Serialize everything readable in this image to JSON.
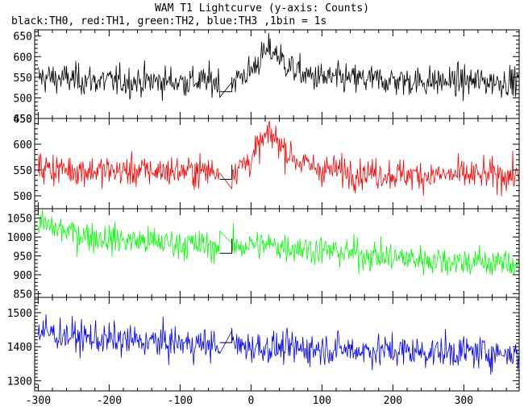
{
  "title": "WAM T1 Lightcurve (y-axis: Counts)",
  "subtitle": "black:TH0, red:TH1, green:TH2, blue:TH3 ,1bin = 1s",
  "chart_data": [
    {
      "type": "line",
      "title": "",
      "xlabel": "",
      "ylabel": "",
      "xlim": [
        -305,
        378
      ],
      "ylim": [
        450,
        665
      ],
      "yticks": [
        450,
        500,
        550,
        600,
        650
      ],
      "color": "#000000",
      "gap": [
        -44,
        -27
      ],
      "gap_level": 515,
      "series": [
        {
          "x": [
            -300,
            -250,
            -200,
            -150,
            -100,
            -50,
            -27,
            0,
            15,
            25,
            35,
            50,
            75,
            100,
            150,
            200,
            250,
            300,
            350,
            378
          ],
          "values": [
            550,
            545,
            540,
            540,
            540,
            540,
            540,
            565,
            600,
            615,
            610,
            580,
            555,
            548,
            545,
            542,
            540,
            540,
            540,
            540
          ]
        }
      ]
    },
    {
      "type": "line",
      "title": "",
      "xlabel": "",
      "ylabel": "",
      "xlim": [
        -305,
        378
      ],
      "ylim": [
        475,
        650
      ],
      "yticks": [
        500,
        550,
        600,
        650
      ],
      "color": "#ff0000",
      "gap": [
        -44,
        -27
      ],
      "gap_level": 532,
      "series": [
        {
          "x": [
            -300,
            -250,
            -200,
            -150,
            -100,
            -50,
            -27,
            0,
            15,
            25,
            35,
            50,
            75,
            100,
            150,
            200,
            250,
            300,
            350,
            378
          ],
          "values": [
            555,
            550,
            548,
            548,
            548,
            548,
            548,
            570,
            605,
            618,
            612,
            585,
            560,
            552,
            545,
            542,
            540,
            540,
            540,
            540
          ]
        }
      ]
    },
    {
      "type": "line",
      "title": "",
      "xlabel": "",
      "ylabel": "",
      "xlim": [
        -305,
        378
      ],
      "ylim": [
        840,
        1075
      ],
      "yticks": [
        850,
        900,
        950,
        1000,
        1050
      ],
      "color": "#00ff00",
      "gap": [
        -44,
        -27
      ],
      "gap_level": 957,
      "series": [
        {
          "x": [
            -300,
            -250,
            -200,
            -150,
            -100,
            -50,
            -27,
            0,
            50,
            100,
            150,
            200,
            250,
            300,
            350,
            378
          ],
          "values": [
            1035,
            1010,
            995,
            988,
            982,
            975,
            975,
            980,
            975,
            965,
            955,
            945,
            940,
            935,
            932,
            930
          ]
        }
      ]
    },
    {
      "type": "line",
      "title": "",
      "xlabel": "",
      "ylabel": "",
      "xlim": [
        -305,
        378
      ],
      "ylim": [
        1270,
        1545
      ],
      "yticks": [
        1300,
        1400,
        1500
      ],
      "xticks": [
        -300,
        -200,
        -100,
        0,
        100,
        200,
        300
      ],
      "color": "#0000ff",
      "gap": [
        -44,
        -27
      ],
      "gap_level": 1412,
      "series": [
        {
          "x": [
            -300,
            -250,
            -200,
            -150,
            -100,
            -50,
            -27,
            0,
            50,
            100,
            150,
            200,
            250,
            300,
            350,
            378
          ],
          "values": [
            1445,
            1430,
            1420,
            1415,
            1410,
            1405,
            1405,
            1400,
            1395,
            1395,
            1390,
            1388,
            1385,
            1385,
            1382,
            1380
          ]
        }
      ]
    }
  ]
}
